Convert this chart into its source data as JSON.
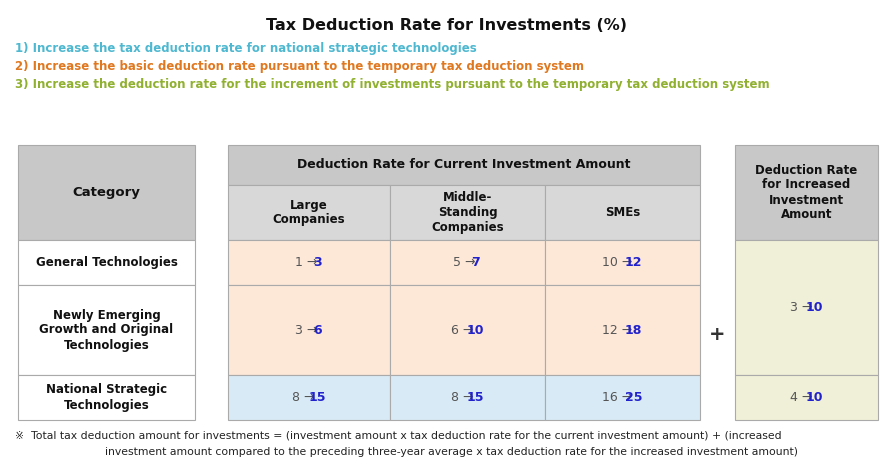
{
  "title": "Tax Deduction Rate for Investments (%)",
  "subtitle1": "1) Increase the tax deduction rate for national strategic technologies",
  "subtitle2": "2) Increase the basic deduction rate pursuant to the temporary tax deduction system",
  "subtitle3": "3) Increase the deduction rate for the increment of investments pursuant to the temporary tax deduction system",
  "subtitle1_color": "#4db8d0",
  "subtitle2_color": "#e07820",
  "subtitle3_color": "#90b030",
  "footnote_line1": "※  Total tax deduction amount for investments = (investment amount x tax deduction rate for the current investment amount) + (increased",
  "footnote_line2": "investment amount compared to the preceding three-year average x tax deduction rate for the increased investment amount)",
  "bg_color": "#ffffff",
  "cat_header_bg": "#c8c8c8",
  "cat_data_bg": "#ffffff",
  "main_header_bg": "#c8c8c8",
  "sub_header_bg": "#d8d8d8",
  "row1_bg": "#fde8d8",
  "row2_bg": "#fde8d8",
  "row3_bg": "#d8eaf5",
  "right_header_bg": "#c8c8c8",
  "right_row12_bg": "#f0f0d8",
  "right_row3_bg": "#f0f0d8",
  "new_value_color": "#2222cc",
  "old_value_color": "#555555",
  "edge_color": "#aaaaaa",
  "text_color": "#111111"
}
